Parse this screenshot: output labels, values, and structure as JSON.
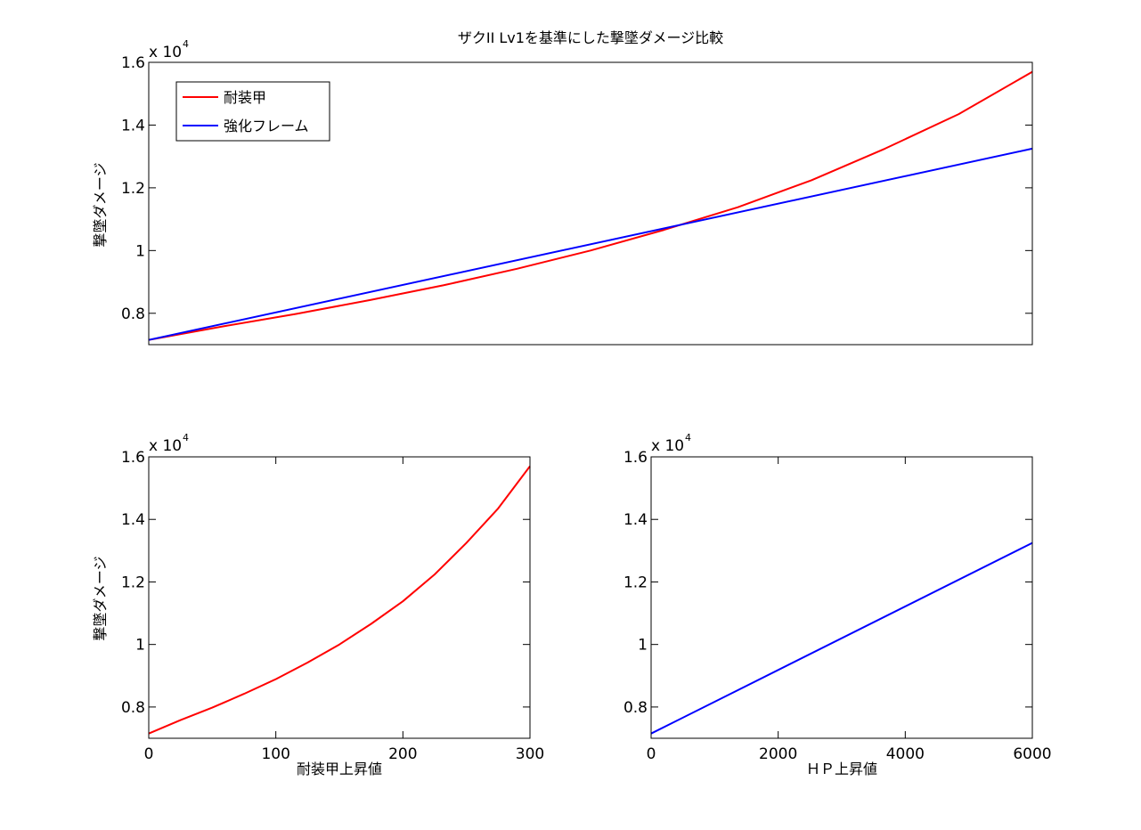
{
  "chart_data": [
    {
      "type": "line",
      "id": "top",
      "title": "ザクII Lv1を基準にした撃墜ダメージ比較",
      "xlabel": "",
      "ylabel": "撃墜ダメージ",
      "xlim": [
        0,
        1
      ],
      "ylim": [
        7000,
        16000
      ],
      "y_exponent": "x 10",
      "y_exponent_power": "4",
      "yticks": [
        8000,
        10000,
        12000,
        14000,
        16000
      ],
      "ytick_labels": [
        "0.8",
        "1",
        "1.2",
        "1.4",
        "1.6"
      ],
      "xticks": [],
      "xtick_labels": [],
      "grid": false,
      "legend": "top-left",
      "series": [
        {
          "name": "耐装甲",
          "color": "#ff0000",
          "x": [
            0,
            0.0833,
            0.1667,
            0.25,
            0.3333,
            0.4167,
            0.5,
            0.5833,
            0.6667,
            0.75,
            0.8333,
            0.9167,
            1
          ],
          "y": [
            7150,
            7580,
            7980,
            8420,
            8890,
            9420,
            10000,
            10660,
            11380,
            12240,
            13250,
            14350,
            15700
          ]
        },
        {
          "name": "強化フレーム",
          "color": "#0000ff",
          "x": [
            0,
            1
          ],
          "y": [
            7150,
            13250
          ]
        }
      ]
    },
    {
      "type": "line",
      "id": "bottom-left",
      "title": "",
      "xlabel": "耐装甲上昇値",
      "ylabel": "撃墜ダメージ",
      "xlim": [
        0,
        300
      ],
      "ylim": [
        7000,
        16000
      ],
      "y_exponent": "x 10",
      "y_exponent_power": "4",
      "yticks": [
        8000,
        10000,
        12000,
        14000,
        16000
      ],
      "ytick_labels": [
        "0.8",
        "1",
        "1.2",
        "1.4",
        "1.6"
      ],
      "xticks": [
        0,
        100,
        200,
        300
      ],
      "xtick_labels": [
        "0",
        "100",
        "200",
        "300"
      ],
      "grid": false,
      "series": [
        {
          "color": "#ff0000",
          "x": [
            0,
            25,
            50,
            75,
            100,
            125,
            150,
            175,
            200,
            225,
            250,
            275,
            300
          ],
          "y": [
            7150,
            7580,
            7980,
            8420,
            8890,
            9420,
            10000,
            10660,
            11380,
            12240,
            13250,
            14350,
            15700
          ]
        }
      ]
    },
    {
      "type": "line",
      "id": "bottom-right",
      "title": "",
      "xlabel": "ＨＰ上昇値",
      "ylabel": "",
      "xlim": [
        0,
        6000
      ],
      "ylim": [
        7000,
        16000
      ],
      "y_exponent": "x 10",
      "y_exponent_power": "4",
      "yticks": [
        8000,
        10000,
        12000,
        14000,
        16000
      ],
      "ytick_labels": [
        "0.8",
        "1",
        "1.2",
        "1.4",
        "1.6"
      ],
      "xticks": [
        0,
        2000,
        4000,
        6000
      ],
      "xtick_labels": [
        "0",
        "2000",
        "4000",
        "6000"
      ],
      "grid": false,
      "series": [
        {
          "color": "#0000ff",
          "x": [
            0,
            6000
          ],
          "y": [
            7150,
            13250
          ]
        }
      ]
    }
  ]
}
